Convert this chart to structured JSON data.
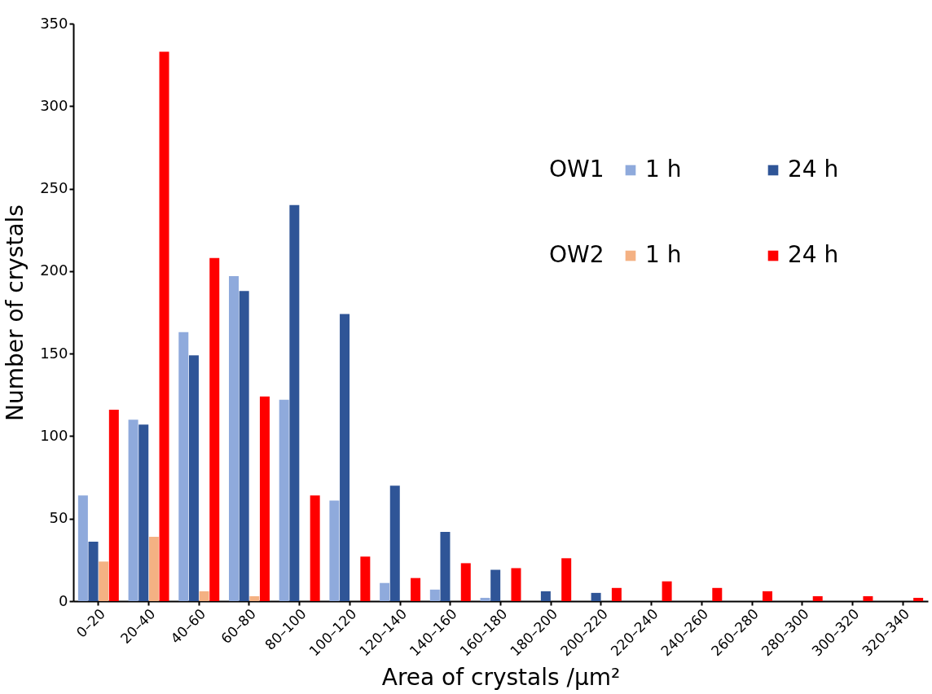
{
  "chart_data": {
    "type": "bar",
    "xlabel": "Area of crystals  /µm²",
    "ylabel": "Number of crystals",
    "categories": [
      "0–20",
      "20–40",
      "40–60",
      "60–80",
      "80–100",
      "100–120",
      "120–140",
      "140–160",
      "160–180",
      "180–200",
      "200–220",
      "220–240",
      "240–260",
      "260–280",
      "280–300",
      "300–320",
      "320–340"
    ],
    "series": [
      {
        "name": "1 h",
        "color": "#8faadc",
        "values": [
          64,
          110,
          163,
          197,
          122,
          61,
          11,
          7,
          2,
          0,
          0,
          0,
          0,
          0,
          0,
          0,
          0
        ]
      },
      {
        "name": "24 h",
        "color": "#2f5597",
        "values": [
          36,
          107,
          149,
          188,
          240,
          174,
          70,
          42,
          19,
          6,
          5,
          0,
          0,
          0,
          0,
          0,
          0
        ]
      },
      {
        "name": "1 h",
        "color": "#f4b183",
        "values": [
          24,
          39,
          6,
          3,
          0,
          0,
          0,
          0,
          0,
          0,
          0,
          0,
          0,
          0,
          0,
          0,
          0
        ]
      },
      {
        "name": "24 h",
        "color": "#ff0000",
        "values": [
          116,
          333,
          208,
          124,
          64,
          27,
          14,
          23,
          20,
          26,
          8,
          12,
          8,
          6,
          3,
          3,
          2
        ]
      }
    ],
    "annotations": [
      "OW1",
      "OW2"
    ],
    "ylim": [
      0,
      350
    ],
    "yticks": [
      0,
      50,
      100,
      150,
      200,
      250,
      300,
      350
    ],
    "grid": false,
    "legend": "top right"
  }
}
